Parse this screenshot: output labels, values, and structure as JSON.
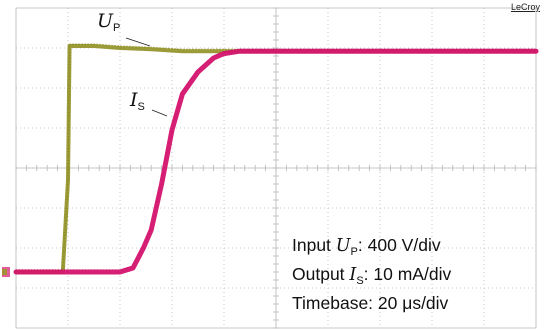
{
  "brand": "LeCroy",
  "labels": {
    "up_symbol": "U",
    "up_sub": "P",
    "is_symbol": "I",
    "is_sub": "S"
  },
  "legend": {
    "input_prefix": "Input ",
    "input_symbol": "U",
    "input_sub": "P",
    "input_scale": ": 400 V/div",
    "output_prefix": "Output ",
    "output_symbol": "I",
    "output_sub": "S",
    "output_scale": ": 10 mA/div",
    "timebase": "Timebase: 20 μs/div"
  },
  "colors": {
    "grid": "#b8b8b8",
    "up_trace": "#8a8a18",
    "is_trace": "#d4146e",
    "ground_marker_c2": "#d4146e",
    "ground_marker_c1": "#9a9a20"
  },
  "chart_data": {
    "type": "line",
    "title": "",
    "xlabel": "",
    "ylabel": "",
    "grid": true,
    "x_divisions": 10,
    "y_divisions": 8,
    "xlim": [
      0,
      10
    ],
    "ylim": [
      -4,
      4
    ],
    "x_unit": "div",
    "y_unit": "div",
    "series": [
      {
        "name": "U_P",
        "color_key": "up_trace",
        "x": [
          0,
          0.9,
          1.0,
          1.03,
          1.2,
          1.5,
          2.0,
          2.6,
          3.2,
          4.0,
          6.0,
          8.0,
          10.0
        ],
        "y": [
          -2.6,
          -2.6,
          -0.3,
          3.05,
          3.05,
          3.05,
          3.0,
          2.97,
          2.92,
          2.92,
          2.92,
          2.92,
          2.92
        ]
      },
      {
        "name": "I_S",
        "color_key": "is_trace",
        "x": [
          0,
          2.0,
          2.25,
          2.45,
          2.6,
          2.8,
          3.0,
          3.2,
          3.5,
          3.8,
          4.0,
          4.3,
          5.0,
          6.0,
          8.0,
          10.0
        ],
        "y": [
          -2.6,
          -2.6,
          -2.5,
          -2.0,
          -1.55,
          -0.4,
          0.95,
          1.85,
          2.4,
          2.75,
          2.86,
          2.92,
          2.92,
          2.92,
          2.92,
          2.92
        ]
      }
    ]
  }
}
